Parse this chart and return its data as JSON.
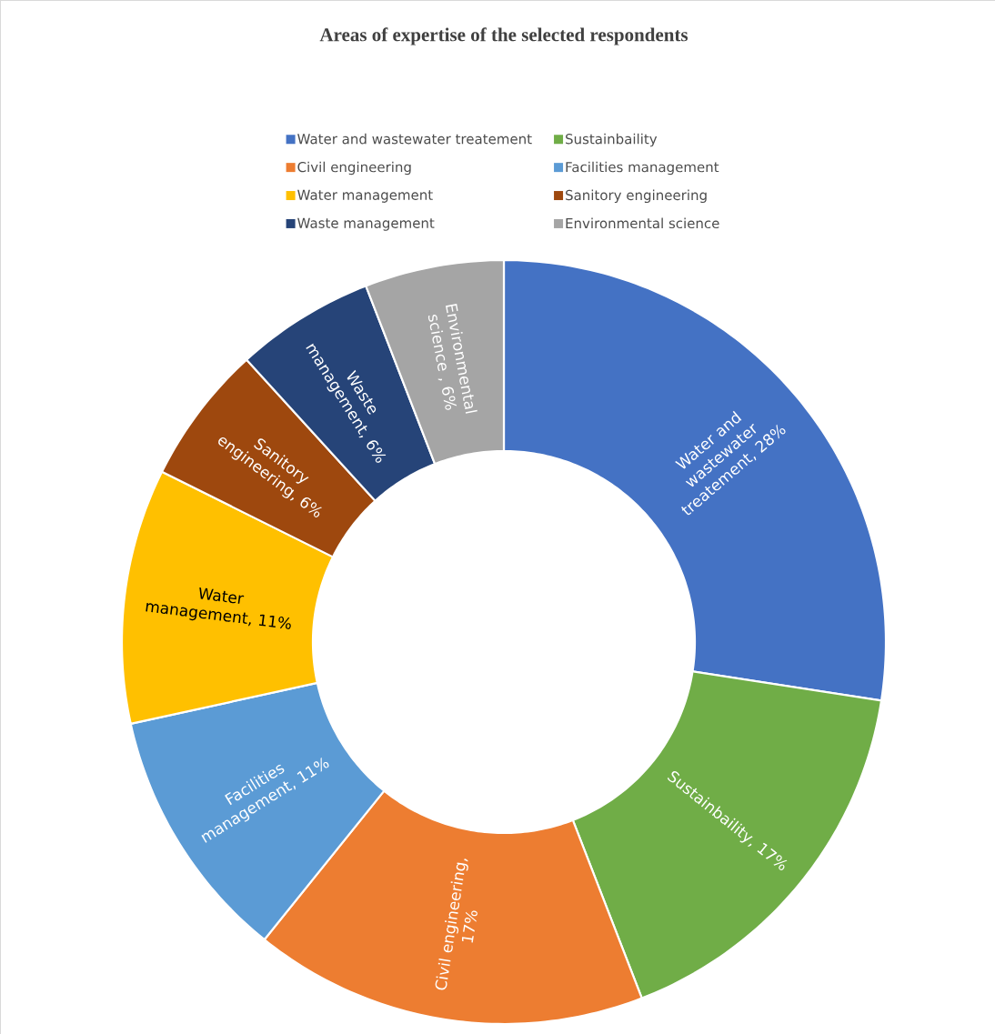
{
  "chart_data": {
    "type": "donut",
    "title": "Areas of expertise of the selected respondents",
    "categories": [
      "Water and wastewater treatement",
      "Sustainbaility",
      "Civil engineering",
      "Facilities management",
      "Water management",
      "Sanitory engineering",
      "Waste management",
      "Environmental science"
    ],
    "values": [
      28,
      17,
      17,
      11,
      11,
      6,
      6,
      6
    ],
    "colors": [
      "#4472c4",
      "#70ad47",
      "#ed7d31",
      "#5b9bd5",
      "#ffc000",
      "#9e480e",
      "#264478",
      "#a5a5a5"
    ],
    "value_labels": [
      "Water and wastewater treatement, 28%",
      "Sustainbaility, 17%",
      "Civil engineering, 17%",
      "Facilities management, 11%",
      "Water management, 11%",
      "Sanitory engineering, 6%",
      "Waste management, 6%",
      "Environmental science , 6%"
    ],
    "legend": "top"
  }
}
